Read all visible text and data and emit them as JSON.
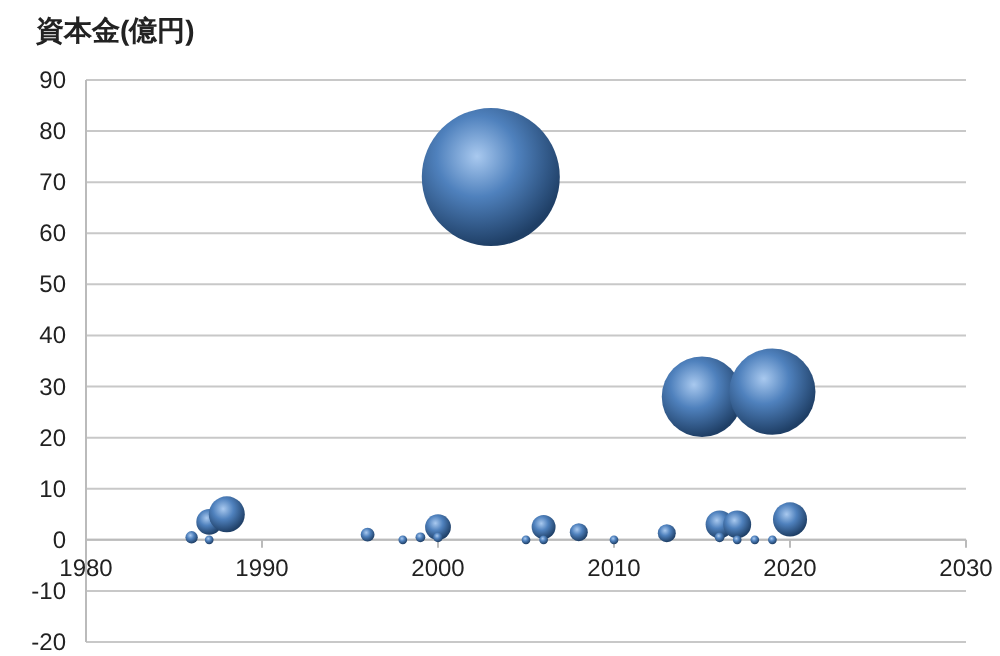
{
  "chart_data": {
    "type": "bubble",
    "ylabel": "資本金(億円)",
    "x": [
      1986,
      1987,
      1987,
      1988,
      1996,
      1998,
      1999,
      2000,
      2000,
      2003,
      2005,
      2006,
      2006,
      2008,
      2010,
      2013,
      2015,
      2016,
      2016,
      2017,
      2017,
      2018,
      2019,
      2019,
      2020
    ],
    "series": [
      {
        "color": "#4f81bd",
        "values": [
          0.5,
          3.5,
          0,
          5,
          1,
          0,
          0.5,
          2.5,
          0.5,
          71,
          0,
          2.5,
          0,
          1.5,
          0,
          1.3,
          28,
          3,
          0.5,
          3,
          0,
          0,
          29,
          0,
          4
        ],
        "sizes": [
          0.008,
          0.035,
          0.004,
          0.068,
          0.01,
          0.004,
          0.005,
          0.035,
          0.005,
          1,
          0.004,
          0.03,
          0.004,
          0.017,
          0.004,
          0.017,
          0.34,
          0.041,
          0.005,
          0.041,
          0.004,
          0.004,
          0.39,
          0.004,
          0.061
        ]
      }
    ],
    "xlim": [
      1980,
      2030
    ],
    "xticks": [
      1980,
      1990,
      2000,
      2010,
      2020,
      2030
    ],
    "ylim": [
      -20,
      90
    ],
    "yticks": [
      -20,
      -10,
      0,
      10,
      20,
      30,
      40,
      50,
      60,
      70,
      80,
      90
    ],
    "grid": "y"
  }
}
